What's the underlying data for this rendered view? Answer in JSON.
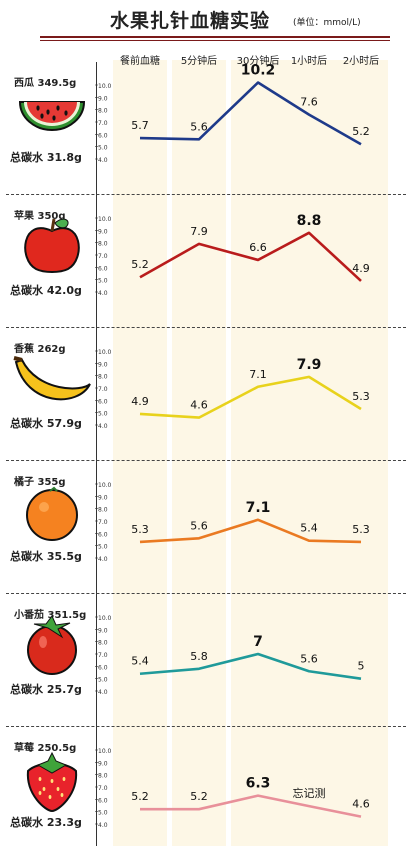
{
  "title": {
    "main": "水果扎针血糖实验",
    "unit": "(单位：mmol/L)"
  },
  "columns": [
    "餐前血糖",
    "5分钟后",
    "30分钟后",
    "1小时后",
    "2小时后"
  ],
  "y_ticks": [
    "10.0",
    "9.0",
    "8.0",
    "7.0",
    "6.0",
    "5.0",
    "4.0"
  ],
  "fruits": [
    {
      "name": "西瓜 349.5g",
      "carb": "总碳水 31.8g",
      "icon": "watermelon-icon"
    },
    {
      "name": "苹果 350g",
      "carb": "总碳水 42.0g",
      "icon": "apple-icon"
    },
    {
      "name": "香蕉 262g",
      "carb": "总碳水 57.9g",
      "icon": "banana-icon"
    },
    {
      "name": "橘子 355g",
      "carb": "总碳水 35.5g",
      "icon": "orange-icon"
    },
    {
      "name": "小番茄 351.5g",
      "carb": "总碳水 25.7g",
      "icon": "cherry-tomato-icon"
    },
    {
      "name": "草莓 250.5g",
      "carb": "总碳水 23.3g",
      "icon": "strawberry-icon"
    }
  ],
  "chart_data": [
    {
      "type": "line",
      "categories": [
        "餐前血糖",
        "5分钟后",
        "30分钟后",
        "1小时后",
        "2小时后"
      ],
      "series": [
        {
          "values": [
            5.7,
            5.6,
            10.2,
            7.6,
            5.2
          ],
          "labels": [
            "5.7",
            "5.6",
            "10.2",
            "7.6",
            "5.2"
          ],
          "color": "#1e3a8a"
        }
      ],
      "ylim": [
        4.0,
        10.0
      ]
    },
    {
      "type": "line",
      "categories": [
        "餐前血糖",
        "5分钟后",
        "30分钟后",
        "1小时后",
        "2小时后"
      ],
      "series": [
        {
          "values": [
            5.2,
            7.9,
            6.6,
            8.8,
            4.9
          ],
          "labels": [
            "5.2",
            "7.9",
            "6.6",
            "8.8",
            "4.9"
          ],
          "color": "#b91c1c"
        }
      ],
      "ylim": [
        4.0,
        10.0
      ]
    },
    {
      "type": "line",
      "categories": [
        "餐前血糖",
        "5分钟后",
        "30分钟后",
        "1小时后",
        "2小时后"
      ],
      "series": [
        {
          "values": [
            4.9,
            4.6,
            7.1,
            7.9,
            5.3
          ],
          "labels": [
            "4.9",
            "4.6",
            "7.1",
            "7.9",
            "5.3"
          ],
          "color": "#e8d21c"
        }
      ],
      "ylim": [
        4.0,
        10.0
      ]
    },
    {
      "type": "line",
      "categories": [
        "餐前血糖",
        "5分钟后",
        "30分钟后",
        "1小时后",
        "2小时后"
      ],
      "series": [
        {
          "values": [
            5.3,
            5.6,
            7.1,
            5.4,
            5.3
          ],
          "labels": [
            "5.3",
            "5.6",
            "7.1",
            "5.4",
            "5.3"
          ],
          "color": "#ea7a22"
        }
      ],
      "ylim": [
        4.0,
        10.0
      ]
    },
    {
      "type": "line",
      "categories": [
        "餐前血糖",
        "5分钟后",
        "30分钟后",
        "1小时后",
        "2小时后"
      ],
      "series": [
        {
          "values": [
            5.4,
            5.8,
            7.0,
            5.6,
            5.0
          ],
          "labels": [
            "5.4",
            "5.8",
            "7",
            "5.6",
            "5"
          ],
          "color": "#1f9a9a"
        }
      ],
      "ylim": [
        4.0,
        10.0
      ]
    },
    {
      "type": "line",
      "categories": [
        "餐前血糖",
        "5分钟后",
        "30分钟后",
        "1小时后",
        "2小时后"
      ],
      "series": [
        {
          "values": [
            5.2,
            5.2,
            6.3,
            null,
            4.6
          ],
          "labels": [
            "5.2",
            "5.2",
            "6.3",
            "忘记测",
            "4.6"
          ],
          "color": "#e8909a"
        }
      ],
      "ylim": [
        4.0,
        10.0
      ]
    }
  ]
}
